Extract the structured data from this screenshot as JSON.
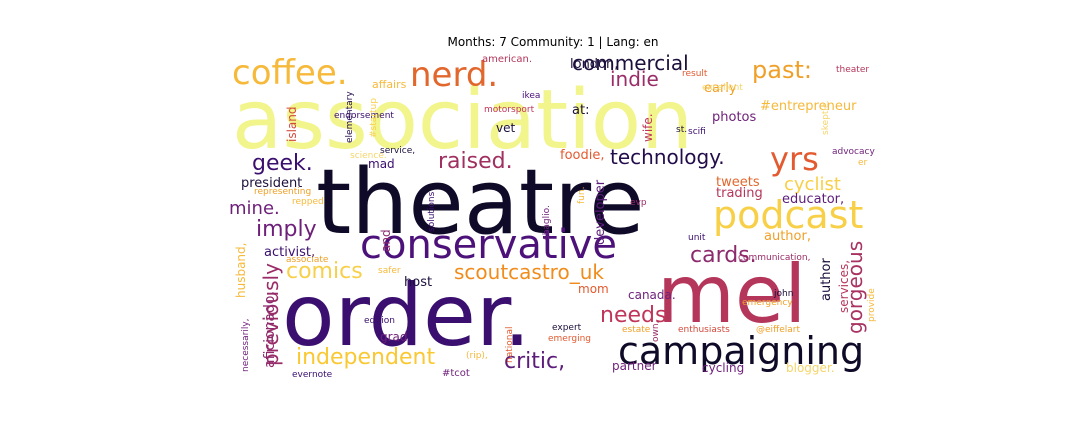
{
  "title": "Months: 7 Community: 1 | Lang: en",
  "words": [
    {
      "text": "association",
      "color": "#f2f48c"
    },
    {
      "text": "theatre",
      "color": "#0f0a28"
    },
    {
      "text": "order.",
      "color": "#3b0f6f"
    },
    {
      "text": "mel",
      "color": "#b5365b"
    },
    {
      "text": "campaigning",
      "color": "#0f0a28"
    },
    {
      "text": "conservative",
      "color": "#4c127a"
    },
    {
      "text": "podcast",
      "color": "#f8d047"
    },
    {
      "text": "coffee.",
      "color": "#f6b93a"
    },
    {
      "text": "nerd.",
      "color": "#e2672d"
    },
    {
      "text": "yrs",
      "color": "#e35a30"
    },
    {
      "text": "raised.",
      "color": "#a0305f"
    },
    {
      "text": "technology.",
      "color": "#230c4a"
    },
    {
      "text": "geek.",
      "color": "#3b0f6f"
    },
    {
      "text": "commercial",
      "color": "#1c0f3c"
    },
    {
      "text": "past:",
      "color": "#f0a028"
    },
    {
      "text": "independent",
      "color": "#f9c832"
    },
    {
      "text": "critic,",
      "color": "#5c1c7a"
    },
    {
      "text": "scoutcastro_uk",
      "color": "#f08c1c"
    },
    {
      "text": "needs",
      "color": "#c0365a"
    },
    {
      "text": "cards.",
      "color": "#8c2a6c"
    },
    {
      "text": "imply",
      "color": "#6e1f7a"
    },
    {
      "text": "comics",
      "color": "#f7d04a"
    },
    {
      "text": "previously",
      "color": "#9a2c68"
    },
    {
      "text": "gorgeous",
      "color": "#a83262"
    },
    {
      "text": "indie",
      "color": "#9a2c68"
    },
    {
      "text": "mine.",
      "color": "#6e1f7a"
    },
    {
      "text": "cyclist",
      "color": "#f8d047"
    },
    {
      "text": "aficionado,",
      "color": "#8c2a6c"
    },
    {
      "text": "london,",
      "color": "#1c0f3c"
    },
    {
      "text": "early",
      "color": "#f0a028"
    },
    {
      "text": "#entrepreneur",
      "color": "#f6b93a"
    },
    {
      "text": "american.",
      "color": "#b5365b"
    },
    {
      "text": "affairs",
      "color": "#f6b93a"
    },
    {
      "text": "endorsement",
      "color": "#3b0f6f"
    },
    {
      "text": "result",
      "color": "#e35a30"
    },
    {
      "text": "excellent",
      "color": "#f6d56a"
    },
    {
      "text": "theater",
      "color": "#b5365b"
    },
    {
      "text": "skeptic.",
      "color": "#f6d56a"
    },
    {
      "text": "island",
      "color": "#d24a3c"
    },
    {
      "text": "#startup",
      "color": "#f7d04a"
    },
    {
      "text": "elementary",
      "color": "#230c4a"
    },
    {
      "text": "motorsport",
      "color": "#c0365a"
    },
    {
      "text": "ikea",
      "color": "#4c127a"
    },
    {
      "text": "vet",
      "color": "#1c0f3c"
    },
    {
      "text": "at:",
      "color": "#1c0f3c"
    },
    {
      "text": "wife.",
      "color": "#c0365a"
    },
    {
      "text": "st.",
      "color": "#1c0f3c"
    },
    {
      "text": "scifi",
      "color": "#3b0f6f"
    },
    {
      "text": "photos",
      "color": "#6e1f7a"
    },
    {
      "text": "advocacy",
      "color": "#6e1f7a"
    },
    {
      "text": "er",
      "color": "#f6b93a"
    },
    {
      "text": "science.",
      "color": "#f6d56a"
    },
    {
      "text": "service,",
      "color": "#1c0f3c"
    },
    {
      "text": "mad",
      "color": "#3b0f6f"
    },
    {
      "text": "foodie,",
      "color": "#e35a30"
    },
    {
      "text": "developer",
      "color": "#5c1c7a"
    },
    {
      "text": "president",
      "color": "#1c0f3c"
    },
    {
      "text": "tweets",
      "color": "#e2672d"
    },
    {
      "text": "trading",
      "color": "#b5365b"
    },
    {
      "text": "educator,",
      "color": "#5c1c7a"
    },
    {
      "text": "solutions",
      "color": "#3b0f6f"
    },
    {
      "text": "fun.",
      "color": "#f6b93a"
    },
    {
      "text": "evp",
      "color": "#9a2c68"
    },
    {
      "text": "representing",
      "color": "#f0a028"
    },
    {
      "text": "repped",
      "color": "#f6b93a"
    },
    {
      "text": "sbaglio.",
      "color": "#6e1f7a"
    },
    {
      "text": "and",
      "color": "#8c2a6c"
    },
    {
      "text": "author,",
      "color": "#f0a028"
    },
    {
      "text": "unit",
      "color": "#3b0f6f"
    },
    {
      "text": "activist,",
      "color": "#3b0f6f"
    },
    {
      "text": "husband,",
      "color": "#f6b93a"
    },
    {
      "text": "associate",
      "color": "#f0a028"
    },
    {
      "text": "host",
      "color": "#1c0f3c"
    },
    {
      "text": "safer",
      "color": "#f6b93a"
    },
    {
      "text": "communication,",
      "color": "#9a2c68"
    },
    {
      "text": "author",
      "color": "#1c0f3c"
    },
    {
      "text": "services,",
      "color": "#b5365b"
    },
    {
      "text": "provide",
      "color": "#f6b93a"
    },
    {
      "text": "john",
      "color": "#1c0f3c"
    },
    {
      "text": "emergency",
      "color": "#f0a028"
    },
    {
      "text": "mom",
      "color": "#e35a30"
    },
    {
      "text": "canada.",
      "color": "#6e1f7a"
    },
    {
      "text": "edition",
      "color": "#3b0f6f"
    },
    {
      "text": "grad",
      "color": "#6e1f7a"
    },
    {
      "text": "necessarily,",
      "color": "#6e1f7a"
    },
    {
      "text": "national",
      "color": "#e35a30"
    },
    {
      "text": "expert",
      "color": "#1c0f3c"
    },
    {
      "text": "estate",
      "color": "#f0a028"
    },
    {
      "text": "enthusiasts",
      "color": "#d24a3c"
    },
    {
      "text": "@eiffelart",
      "color": "#f0a028"
    },
    {
      "text": "emerging",
      "color": "#e35a30"
    },
    {
      "text": "(rip),",
      "color": "#f6b93a"
    },
    {
      "text": "own,",
      "color": "#9a2c68"
    },
    {
      "text": "partner",
      "color": "#6e1f7a"
    },
    {
      "text": "cycling",
      "color": "#6e1f7a"
    },
    {
      "text": "blogger.",
      "color": "#f6d56a"
    },
    {
      "text": "evernote",
      "color": "#3b0f6f"
    },
    {
      "text": "#tcot",
      "color": "#6e1f7a"
    }
  ]
}
